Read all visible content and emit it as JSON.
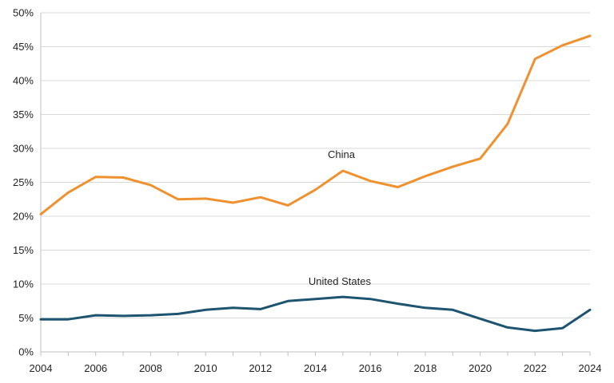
{
  "chart_data": {
    "type": "line",
    "x": [
      2004,
      2005,
      2006,
      2007,
      2008,
      2009,
      2010,
      2011,
      2012,
      2013,
      2014,
      2015,
      2016,
      2017,
      2018,
      2019,
      2020,
      2021,
      2022,
      2023,
      2024
    ],
    "xticks": [
      "2004",
      "2006",
      "2008",
      "2010",
      "2012",
      "2014",
      "2016",
      "2018",
      "2020",
      "2022",
      "2024"
    ],
    "yticks": [
      "0%",
      "5%",
      "10%",
      "15%",
      "20%",
      "25%",
      "30%",
      "35%",
      "40%",
      "45%",
      "50%"
    ],
    "ylim": [
      0,
      50
    ],
    "xlim": [
      2004,
      2024
    ],
    "grid": true,
    "series": [
      {
        "name": "China",
        "color": "#F0912F",
        "values": [
          20.3,
          23.5,
          25.8,
          25.7,
          24.6,
          22.5,
          22.6,
          22.0,
          22.8,
          21.6,
          23.9,
          26.7,
          25.2,
          24.3,
          25.9,
          27.3,
          28.5,
          33.6,
          43.2,
          45.2,
          46.6
        ]
      },
      {
        "name": "United States",
        "color": "#1D5470",
        "values": [
          4.8,
          4.8,
          5.4,
          5.3,
          5.4,
          5.6,
          6.2,
          6.5,
          6.3,
          7.5,
          7.8,
          8.1,
          7.8,
          7.1,
          6.5,
          6.2,
          4.9,
          3.6,
          3.1,
          3.5,
          6.2
        ]
      }
    ]
  }
}
